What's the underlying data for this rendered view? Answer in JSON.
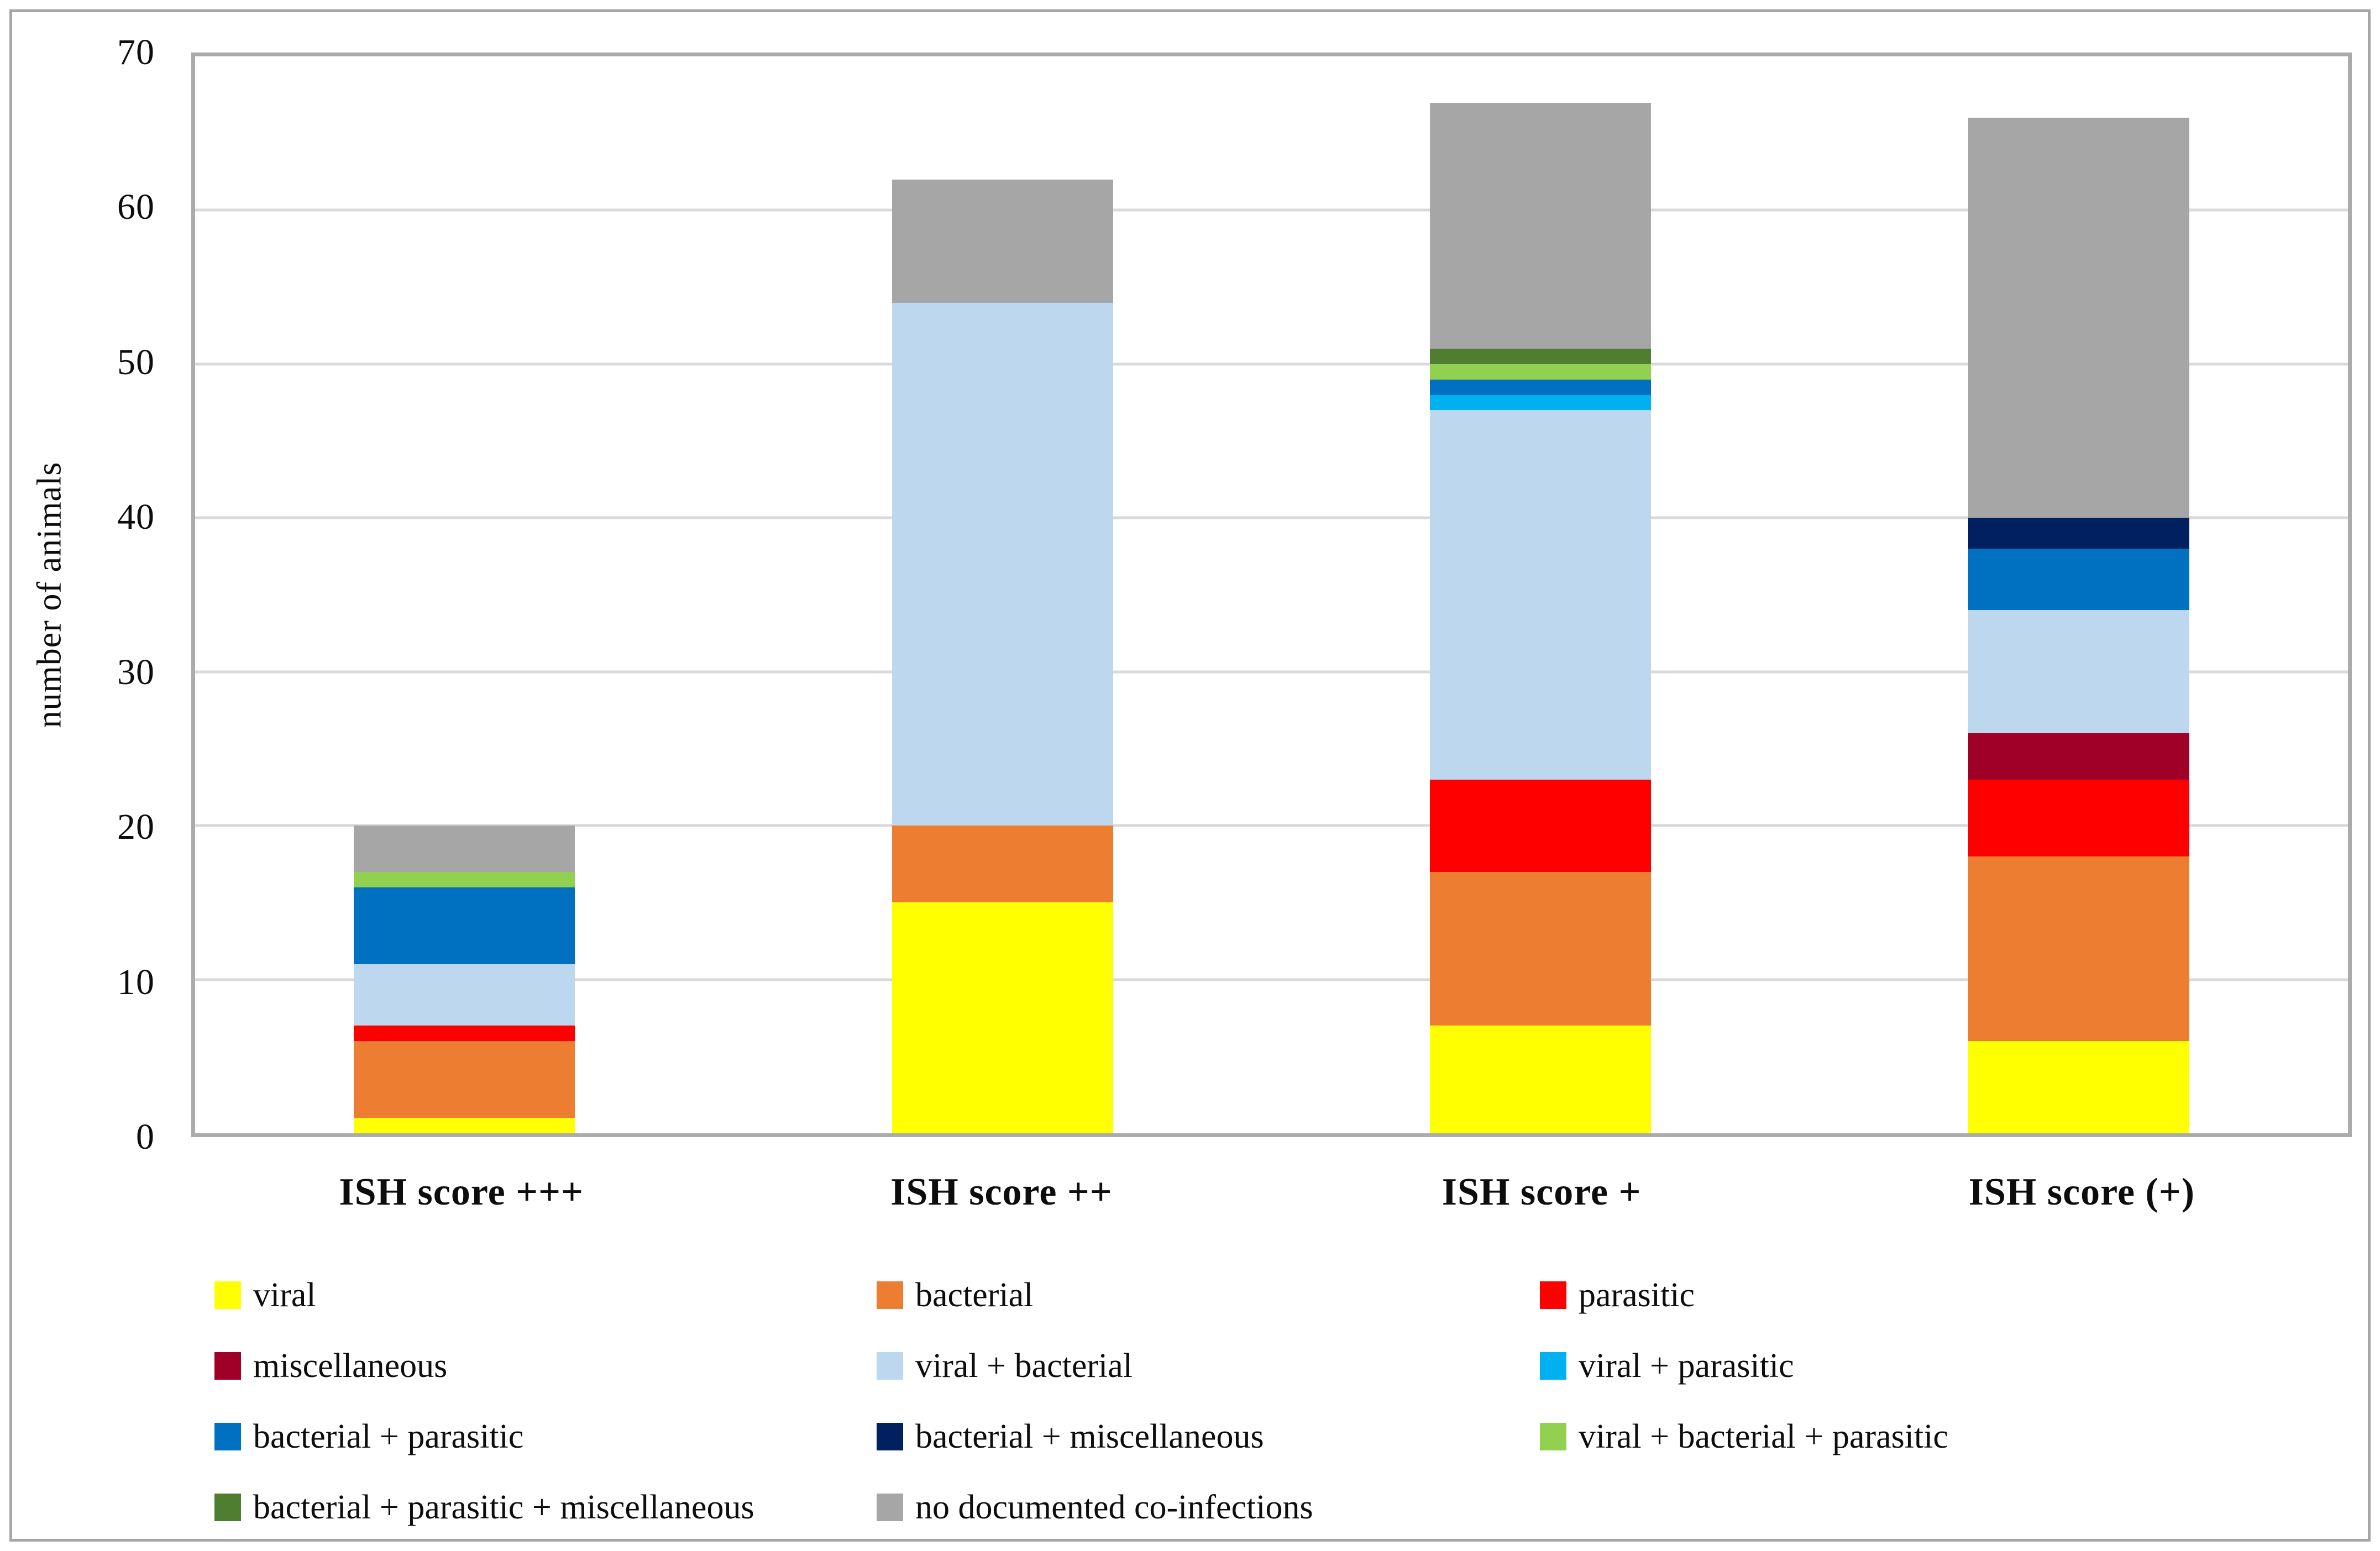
{
  "chart_data": {
    "type": "bar",
    "stacked": true,
    "title": "",
    "xlabel": "",
    "ylabel": "number of animals",
    "ylim": [
      0,
      70
    ],
    "yticks": [
      0,
      10,
      20,
      30,
      40,
      50,
      60,
      70
    ],
    "grid": true,
    "legend_position": "bottom",
    "legend_columns": 3,
    "categories": [
      "ISH score +++",
      "ISH score ++",
      "ISH score +",
      "ISH score (+)"
    ],
    "series": [
      {
        "name": "viral",
        "color": "#FFFF00",
        "values": [
          1,
          15,
          7,
          6
        ]
      },
      {
        "name": "bacterial",
        "color": "#ED7D31",
        "values": [
          5,
          5,
          10,
          12
        ]
      },
      {
        "name": "parasitic",
        "color": "#FF0000",
        "values": [
          1,
          0,
          6,
          5
        ]
      },
      {
        "name": "miscellaneous",
        "color": "#A00027",
        "values": [
          0,
          0,
          0,
          3
        ]
      },
      {
        "name": "viral + bacterial",
        "color": "#BDD7EE",
        "values": [
          4,
          34,
          24,
          8
        ]
      },
      {
        "name": "viral + parasitic",
        "color": "#00B0F0",
        "values": [
          0,
          0,
          1,
          0
        ]
      },
      {
        "name": "bacterial + parasitic",
        "color": "#0070C0",
        "values": [
          5,
          0,
          1,
          4
        ]
      },
      {
        "name": "bacterial + miscellaneous",
        "color": "#002060",
        "values": [
          0,
          0,
          0,
          2
        ]
      },
      {
        "name": "viral + bacterial + parasitic",
        "color": "#92D050",
        "values": [
          1,
          0,
          1,
          0
        ]
      },
      {
        "name": "bacterial + parasitic + miscellaneous",
        "color": "#507E31",
        "values": [
          0,
          0,
          1,
          0
        ]
      },
      {
        "name": "no documented co-infections",
        "color": "#A6A6A6",
        "values": [
          3,
          8,
          16,
          26
        ]
      }
    ],
    "bar_totals": [
      20,
      62,
      67,
      66
    ],
    "colors": {
      "gridline": "#D9D9D9",
      "plot_border": "#ABABAB",
      "figure_border": "#A6A6A6",
      "text": "#0d0d0d"
    }
  }
}
